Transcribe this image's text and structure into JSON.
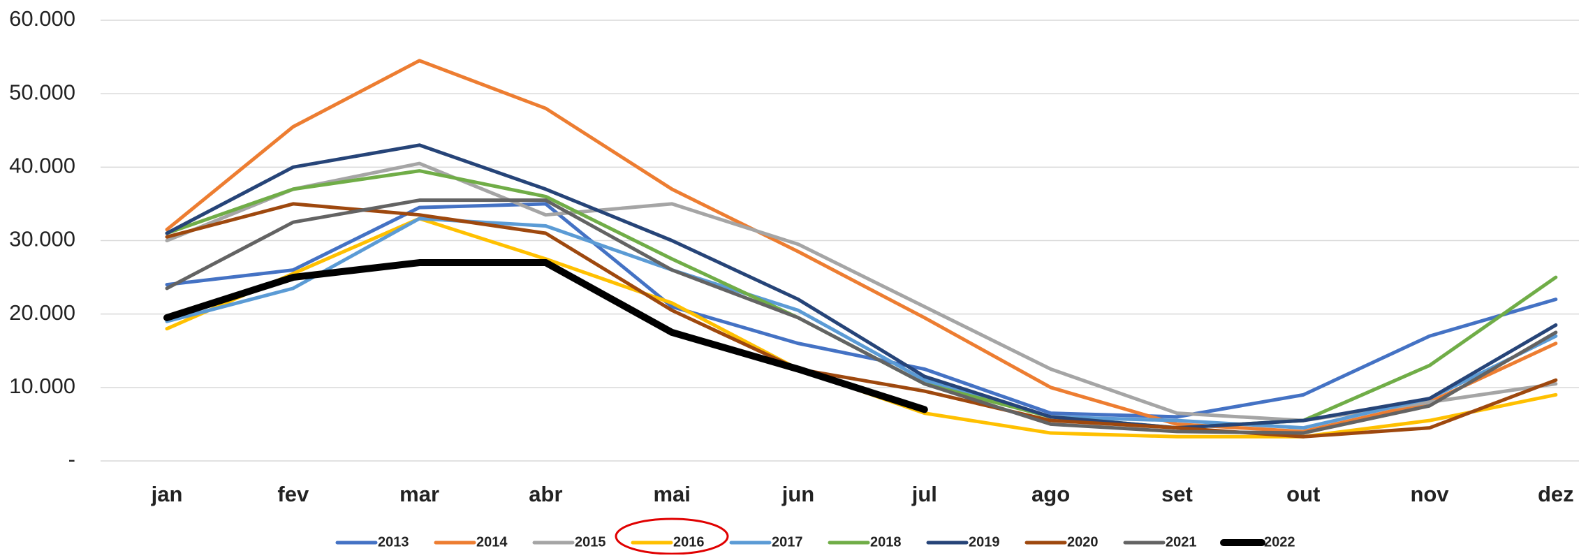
{
  "chart_data": {
    "type": "line",
    "categories": [
      "jan",
      "fev",
      "mar",
      "abr",
      "mai",
      "jun",
      "jul",
      "ago",
      "set",
      "out",
      "nov",
      "dez"
    ],
    "ylim": [
      0,
      60000
    ],
    "yticks": [
      {
        "value": 0,
        "label": "-"
      },
      {
        "value": 10000,
        "label": "10.000"
      },
      {
        "value": 20000,
        "label": "20.000"
      },
      {
        "value": 30000,
        "label": "30.000"
      },
      {
        "value": 40000,
        "label": "40.000"
      },
      {
        "value": 50000,
        "label": "50.000"
      },
      {
        "value": 60000,
        "label": "60.000"
      }
    ],
    "grid": true,
    "legend": "bottom",
    "series": [
      {
        "name": "2013",
        "color": "#4472c4",
        "line_width": 5,
        "values": [
          24000,
          26000,
          34500,
          35000,
          21000,
          16000,
          12500,
          6500,
          6000,
          9000,
          17000,
          22000
        ]
      },
      {
        "name": "2014",
        "color": "#ed7d31",
        "line_width": 5,
        "values": [
          31500,
          45500,
          54500,
          48000,
          37000,
          28500,
          19500,
          10000,
          5000,
          4000,
          8000,
          16000
        ]
      },
      {
        "name": "2015",
        "color": "#a5a5a5",
        "line_width": 5,
        "values": [
          30000,
          37000,
          40500,
          33500,
          35000,
          29500,
          21000,
          12500,
          6500,
          5500,
          8000,
          10500
        ]
      },
      {
        "name": "2016",
        "color": "#ffc000",
        "line_width": 5,
        "values": [
          18000,
          25500,
          33000,
          27500,
          21500,
          12500,
          6500,
          3800,
          3300,
          3300,
          5500,
          9000
        ]
      },
      {
        "name": "2017",
        "color": "#5b9bd5",
        "line_width": 5,
        "values": [
          19000,
          23500,
          33000,
          32000,
          26000,
          20500,
          11000,
          6000,
          5500,
          4500,
          8500,
          17000
        ]
      },
      {
        "name": "2018",
        "color": "#70ad47",
        "line_width": 5,
        "values": [
          31000,
          37000,
          39500,
          36000,
          27500,
          19500,
          10500,
          6000,
          4500,
          5500,
          13000,
          25000
        ]
      },
      {
        "name": "2019",
        "color": "#264478",
        "line_width": 5,
        "values": [
          31000,
          40000,
          43000,
          37000,
          30000,
          22000,
          11500,
          6000,
          4500,
          5500,
          8500,
          18500
        ]
      },
      {
        "name": "2020",
        "color": "#9e480e",
        "line_width": 5,
        "values": [
          30500,
          35000,
          33500,
          31000,
          20500,
          12500,
          9500,
          5500,
          4500,
          3300,
          4500,
          11000
        ]
      },
      {
        "name": "2021",
        "color": "#636363",
        "line_width": 5,
        "values": [
          23500,
          32500,
          35500,
          35500,
          26000,
          19500,
          10500,
          5000,
          4000,
          3800,
          7500,
          17500
        ]
      },
      {
        "name": "2022",
        "color": "#000000",
        "line_width": 10,
        "values": [
          19500,
          25000,
          27000,
          27000,
          17500,
          12500,
          7000,
          null,
          null,
          null,
          null,
          null
        ]
      }
    ]
  }
}
